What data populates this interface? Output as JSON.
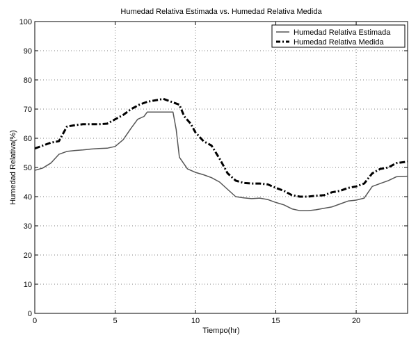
{
  "chart_data": {
    "type": "line",
    "title": "Humedad Relativa Estimada vs. Humedad Relativa Medida",
    "xlabel": "Tiempo(hr)",
    "ylabel": "Humedad Relativa(%)",
    "xlim": [
      0,
      23.2
    ],
    "ylim": [
      0,
      100
    ],
    "xticks": [
      0,
      5,
      10,
      15,
      20
    ],
    "yticks": [
      0,
      10,
      20,
      30,
      40,
      50,
      60,
      70,
      80,
      90,
      100
    ],
    "grid": true,
    "legend_position": "top-right",
    "series": [
      {
        "name": "Humedad Relativa Estimada",
        "style": "solid",
        "color": "#555555",
        "points": [
          [
            0,
            49
          ],
          [
            0.5,
            49.8
          ],
          [
            1,
            51.5
          ],
          [
            1.5,
            54.5
          ],
          [
            2,
            55.5
          ],
          [
            2.5,
            55.8
          ],
          [
            3,
            56
          ],
          [
            3.5,
            56.3
          ],
          [
            4,
            56.5
          ],
          [
            4.5,
            56.6
          ],
          [
            5,
            57.2
          ],
          [
            5.5,
            59.5
          ],
          [
            6,
            63.5
          ],
          [
            6.4,
            66.5
          ],
          [
            6.8,
            67.5
          ],
          [
            7,
            69
          ],
          [
            7.5,
            69
          ],
          [
            8,
            69
          ],
          [
            8.6,
            69
          ],
          [
            8.8,
            63
          ],
          [
            9,
            53.5
          ],
          [
            9.5,
            49.5
          ],
          [
            10,
            48.3
          ],
          [
            10.5,
            47.5
          ],
          [
            11,
            46.5
          ],
          [
            11.5,
            45
          ],
          [
            12,
            42.5
          ],
          [
            12.5,
            40
          ],
          [
            13,
            39.6
          ],
          [
            13.5,
            39.3
          ],
          [
            14,
            39.5
          ],
          [
            14.5,
            39
          ],
          [
            15,
            38
          ],
          [
            15.5,
            37.2
          ],
          [
            16,
            35.8
          ],
          [
            16.5,
            35.2
          ],
          [
            17,
            35.2
          ],
          [
            17.5,
            35.5
          ],
          [
            18,
            36
          ],
          [
            18.5,
            36.5
          ],
          [
            19,
            37.5
          ],
          [
            19.5,
            38.5
          ],
          [
            20,
            38.8
          ],
          [
            20.5,
            39.5
          ],
          [
            21,
            43.5
          ],
          [
            21.5,
            44.5
          ],
          [
            22,
            45.5
          ],
          [
            22.5,
            46.8
          ],
          [
            23.2,
            47
          ]
        ]
      },
      {
        "name": "Humedad Relativa Medida",
        "style": "dash-dot",
        "color": "#000000",
        "points": [
          [
            0,
            56.5
          ],
          [
            0.5,
            57.5
          ],
          [
            1,
            58.5
          ],
          [
            1.5,
            59
          ],
          [
            2,
            64
          ],
          [
            2.5,
            64.5
          ],
          [
            3,
            64.8
          ],
          [
            3.5,
            64.8
          ],
          [
            4,
            64.8
          ],
          [
            4.5,
            65
          ],
          [
            5,
            66.5
          ],
          [
            5.5,
            68
          ],
          [
            6,
            70
          ],
          [
            6.5,
            71.5
          ],
          [
            7,
            72.5
          ],
          [
            7.5,
            73
          ],
          [
            8,
            73.5
          ],
          [
            8.5,
            72.5
          ],
          [
            9,
            71.5
          ],
          [
            9.3,
            67.5
          ],
          [
            9.7,
            65
          ],
          [
            10,
            62
          ],
          [
            10.5,
            59
          ],
          [
            11,
            57.5
          ],
          [
            11.5,
            53
          ],
          [
            12,
            48
          ],
          [
            12.5,
            45.5
          ],
          [
            13,
            44.7
          ],
          [
            13.5,
            44.5
          ],
          [
            14,
            44.5
          ],
          [
            14.5,
            44.2
          ],
          [
            15,
            43
          ],
          [
            15.5,
            42
          ],
          [
            16,
            40.5
          ],
          [
            16.5,
            40
          ],
          [
            17,
            40
          ],
          [
            17.5,
            40.3
          ],
          [
            18,
            40.5
          ],
          [
            18.5,
            41.5
          ],
          [
            19,
            42
          ],
          [
            19.5,
            43
          ],
          [
            20,
            43.5
          ],
          [
            20.5,
            44.5
          ],
          [
            21,
            48
          ],
          [
            21.5,
            49.5
          ],
          [
            22,
            50
          ],
          [
            22.5,
            51.5
          ],
          [
            23.2,
            52
          ]
        ]
      }
    ]
  }
}
